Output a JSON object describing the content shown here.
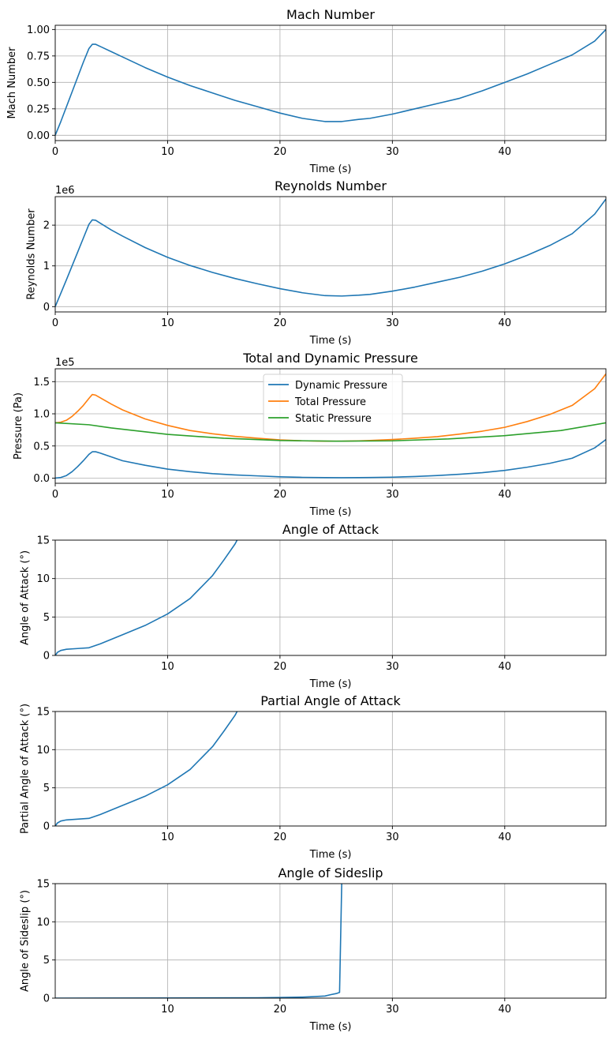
{
  "chart_data": [
    {
      "type": "line",
      "title": "Mach Number",
      "xlabel": "Time (s)",
      "ylabel": "Mach Number",
      "xlim": [
        0,
        49
      ],
      "ylim": [
        -0.05,
        1.04
      ],
      "xticks": [
        0,
        10,
        20,
        30,
        40
      ],
      "yticks": [
        0.0,
        0.25,
        0.5,
        0.75,
        1.0
      ],
      "ytick_labels": [
        "0.00",
        "0.25",
        "0.50",
        "0.75",
        "1.00"
      ],
      "offset_text": "",
      "grid": true,
      "series": [
        {
          "color": "#1f77b4",
          "x": [
            0,
            0.5,
            1,
            1.5,
            2,
            2.5,
            3,
            3.3,
            3.6,
            4,
            5,
            6,
            8,
            10,
            12,
            14,
            16,
            18,
            20,
            22,
            24,
            25.5,
            27,
            28,
            30,
            32,
            34,
            36,
            38,
            40,
            42,
            44,
            46,
            48,
            49
          ],
          "y": [
            0.0,
            0.13,
            0.27,
            0.41,
            0.55,
            0.69,
            0.82,
            0.86,
            0.86,
            0.84,
            0.79,
            0.74,
            0.64,
            0.55,
            0.47,
            0.4,
            0.33,
            0.27,
            0.21,
            0.16,
            0.13,
            0.13,
            0.15,
            0.16,
            0.2,
            0.25,
            0.3,
            0.35,
            0.42,
            0.5,
            0.58,
            0.67,
            0.76,
            0.89,
            1.0
          ]
        }
      ]
    },
    {
      "type": "line",
      "title": "Reynolds Number",
      "xlabel": "Time (s)",
      "ylabel": "Reynolds Number",
      "xlim": [
        0,
        49
      ],
      "ylim": [
        -0.13,
        2.7
      ],
      "xticks": [
        0,
        10,
        20,
        30,
        40
      ],
      "yticks": [
        0,
        1,
        2
      ],
      "ytick_labels": [
        "0",
        "1",
        "2"
      ],
      "offset_text": "1e6",
      "grid": true,
      "series": [
        {
          "color": "#1f77b4",
          "x": [
            0,
            0.5,
            1,
            1.5,
            2,
            2.5,
            3,
            3.3,
            3.6,
            4,
            5,
            6,
            8,
            10,
            12,
            14,
            16,
            18,
            20,
            22,
            24,
            25.5,
            27,
            28,
            30,
            32,
            34,
            36,
            38,
            40,
            42,
            44,
            46,
            48,
            49
          ],
          "y": [
            0.0,
            0.33,
            0.66,
            1.0,
            1.34,
            1.68,
            2.02,
            2.13,
            2.12,
            2.05,
            1.88,
            1.73,
            1.45,
            1.21,
            1.01,
            0.84,
            0.69,
            0.56,
            0.44,
            0.34,
            0.27,
            0.26,
            0.28,
            0.3,
            0.38,
            0.48,
            0.6,
            0.72,
            0.87,
            1.05,
            1.26,
            1.5,
            1.79,
            2.27,
            2.64
          ]
        }
      ]
    },
    {
      "type": "line",
      "title": "Total and Dynamic Pressure",
      "xlabel": "Time (s)",
      "ylabel": "Pressure (Pa)",
      "xlim": [
        0,
        49
      ],
      "ylim": [
        -0.08,
        1.7
      ],
      "xticks": [
        0,
        10,
        20,
        30,
        40
      ],
      "yticks": [
        0.0,
        0.5,
        1.0,
        1.5
      ],
      "ytick_labels": [
        "0.0",
        "0.5",
        "1.0",
        "1.5"
      ],
      "offset_text": "1e5",
      "grid": true,
      "legend": "upper center",
      "series": [
        {
          "name": "Dynamic Pressure",
          "color": "#1f77b4",
          "x": [
            0,
            0.5,
            1,
            1.5,
            2,
            2.5,
            3,
            3.3,
            3.6,
            4,
            5,
            6,
            8,
            10,
            12,
            14,
            16,
            18,
            20,
            22,
            24,
            25.5,
            27,
            28,
            30,
            32,
            34,
            36,
            38,
            40,
            42,
            44,
            46,
            48,
            49
          ],
          "y": [
            0.0,
            0.01,
            0.04,
            0.1,
            0.18,
            0.27,
            0.37,
            0.41,
            0.41,
            0.39,
            0.33,
            0.27,
            0.2,
            0.14,
            0.1,
            0.07,
            0.05,
            0.035,
            0.02,
            0.012,
            0.008,
            0.007,
            0.008,
            0.01,
            0.015,
            0.025,
            0.04,
            0.06,
            0.085,
            0.12,
            0.17,
            0.23,
            0.31,
            0.47,
            0.6
          ]
        },
        {
          "name": "Total Pressure",
          "color": "#ff7f0e",
          "x": [
            0,
            0.5,
            1,
            1.5,
            2,
            2.5,
            3,
            3.3,
            3.6,
            4,
            5,
            6,
            8,
            10,
            12,
            14,
            16,
            18,
            20,
            22,
            24,
            25.5,
            27,
            28,
            30,
            32,
            34,
            36,
            38,
            40,
            42,
            44,
            46,
            48,
            49
          ],
          "y": [
            0.86,
            0.87,
            0.9,
            0.96,
            1.04,
            1.13,
            1.24,
            1.3,
            1.29,
            1.25,
            1.15,
            1.06,
            0.92,
            0.82,
            0.74,
            0.69,
            0.65,
            0.62,
            0.595,
            0.58,
            0.575,
            0.575,
            0.58,
            0.585,
            0.6,
            0.62,
            0.645,
            0.685,
            0.73,
            0.79,
            0.88,
            0.99,
            1.13,
            1.39,
            1.62
          ]
        },
        {
          "name": "Static Pressure",
          "color": "#2ca02c",
          "x": [
            0,
            3,
            5,
            10,
            15,
            20,
            25,
            30,
            35,
            40,
            45,
            49
          ],
          "y": [
            0.86,
            0.83,
            0.78,
            0.68,
            0.62,
            0.585,
            0.575,
            0.58,
            0.61,
            0.66,
            0.74,
            0.86
          ]
        }
      ]
    },
    {
      "type": "line",
      "title": "Angle of Attack",
      "xlabel": "Time (s)",
      "ylabel": "Angle of Attack (°)",
      "xlim": [
        0,
        49
      ],
      "ylim": [
        0,
        15
      ],
      "xticks": [
        10,
        20,
        30,
        40
      ],
      "yticks": [
        0,
        5,
        10,
        15
      ],
      "ytick_labels": [
        "0",
        "5",
        "10",
        "15"
      ],
      "offset_text": "",
      "grid": true,
      "series": [
        {
          "color": "#1f77b4",
          "x": [
            0,
            0.2,
            0.5,
            1,
            2,
            3,
            4,
            6,
            8,
            10,
            12,
            14,
            15,
            16,
            16.4
          ],
          "y": [
            0,
            0.4,
            0.65,
            0.8,
            0.9,
            1.0,
            1.5,
            2.7,
            3.9,
            5.4,
            7.4,
            10.4,
            12.4,
            14.5,
            15.6
          ]
        }
      ]
    },
    {
      "type": "line",
      "title": "Partial Angle of Attack",
      "xlabel": "Time (s)",
      "ylabel": "Partial Angle of Attack (°)",
      "xlim": [
        0,
        49
      ],
      "ylim": [
        0,
        15
      ],
      "xticks": [
        10,
        20,
        30,
        40
      ],
      "yticks": [
        0,
        5,
        10,
        15
      ],
      "ytick_labels": [
        "0",
        "5",
        "10",
        "15"
      ],
      "offset_text": "",
      "grid": true,
      "series": [
        {
          "color": "#1f77b4",
          "x": [
            0,
            0.2,
            0.5,
            1,
            2,
            3,
            4,
            6,
            8,
            10,
            12,
            14,
            15,
            16,
            16.4
          ],
          "y": [
            0,
            0.4,
            0.65,
            0.8,
            0.9,
            1.0,
            1.5,
            2.7,
            3.9,
            5.4,
            7.4,
            10.4,
            12.4,
            14.5,
            15.6
          ]
        }
      ]
    },
    {
      "type": "line",
      "title": "Angle of Sideslip",
      "xlabel": "Time (s)",
      "ylabel": "Angle of Sideslip (°)",
      "xlim": [
        0,
        49
      ],
      "ylim": [
        0,
        15
      ],
      "xticks": [
        10,
        20,
        30,
        40
      ],
      "yticks": [
        0,
        5,
        10,
        15
      ],
      "ytick_labels": [
        "0",
        "5",
        "10",
        "15"
      ],
      "offset_text": "",
      "grid": true,
      "series": [
        {
          "color": "#1f77b4",
          "x": [
            0,
            10,
            18,
            20,
            22,
            23,
            24,
            24.5,
            25,
            25.3,
            25.5
          ],
          "y": [
            0,
            0.02,
            0.05,
            0.08,
            0.14,
            0.2,
            0.28,
            0.45,
            0.6,
            0.75,
            15.5
          ]
        }
      ]
    }
  ]
}
